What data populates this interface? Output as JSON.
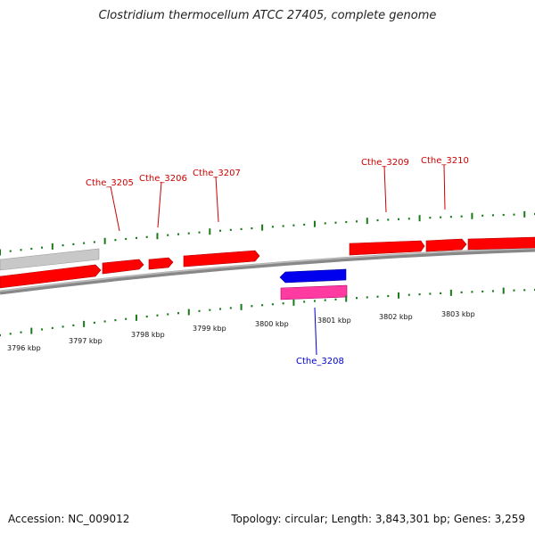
{
  "title": "Clostridium thermocellum ATCC 27405, complete genome",
  "footer": {
    "accession": "Accession: NC_009012",
    "summary": "Topology: circular; Length: 3,843,301 bp; Genes: 3,259"
  },
  "colors": {
    "forward_gene": "#ff0000",
    "reverse_gene": "#0000ee",
    "rna_gene": "#ff3aa0",
    "other_feature": "#c8c8c8",
    "backbone": "#888888",
    "tick": "#1a7a1a",
    "forward_label": "#cc0000",
    "reverse_label": "#0000cc",
    "scale_label": "#111111"
  },
  "scale": {
    "labels": [
      "3796 kbp",
      "3797 kbp",
      "3798 kbp",
      "3799 kbp",
      "3800 kbp",
      "3801 kbp",
      "3802 kbp",
      "3803 kbp"
    ]
  },
  "genes": [
    {
      "locus": "Cthe_3205",
      "strand": "+"
    },
    {
      "locus": "Cthe_3206",
      "strand": "+"
    },
    {
      "locus": "Cthe_3207",
      "strand": "+"
    },
    {
      "locus": "Cthe_3208",
      "strand": "-"
    },
    {
      "locus": "Cthe_3209",
      "strand": "+"
    },
    {
      "locus": "Cthe_3210",
      "strand": "+"
    }
  ]
}
